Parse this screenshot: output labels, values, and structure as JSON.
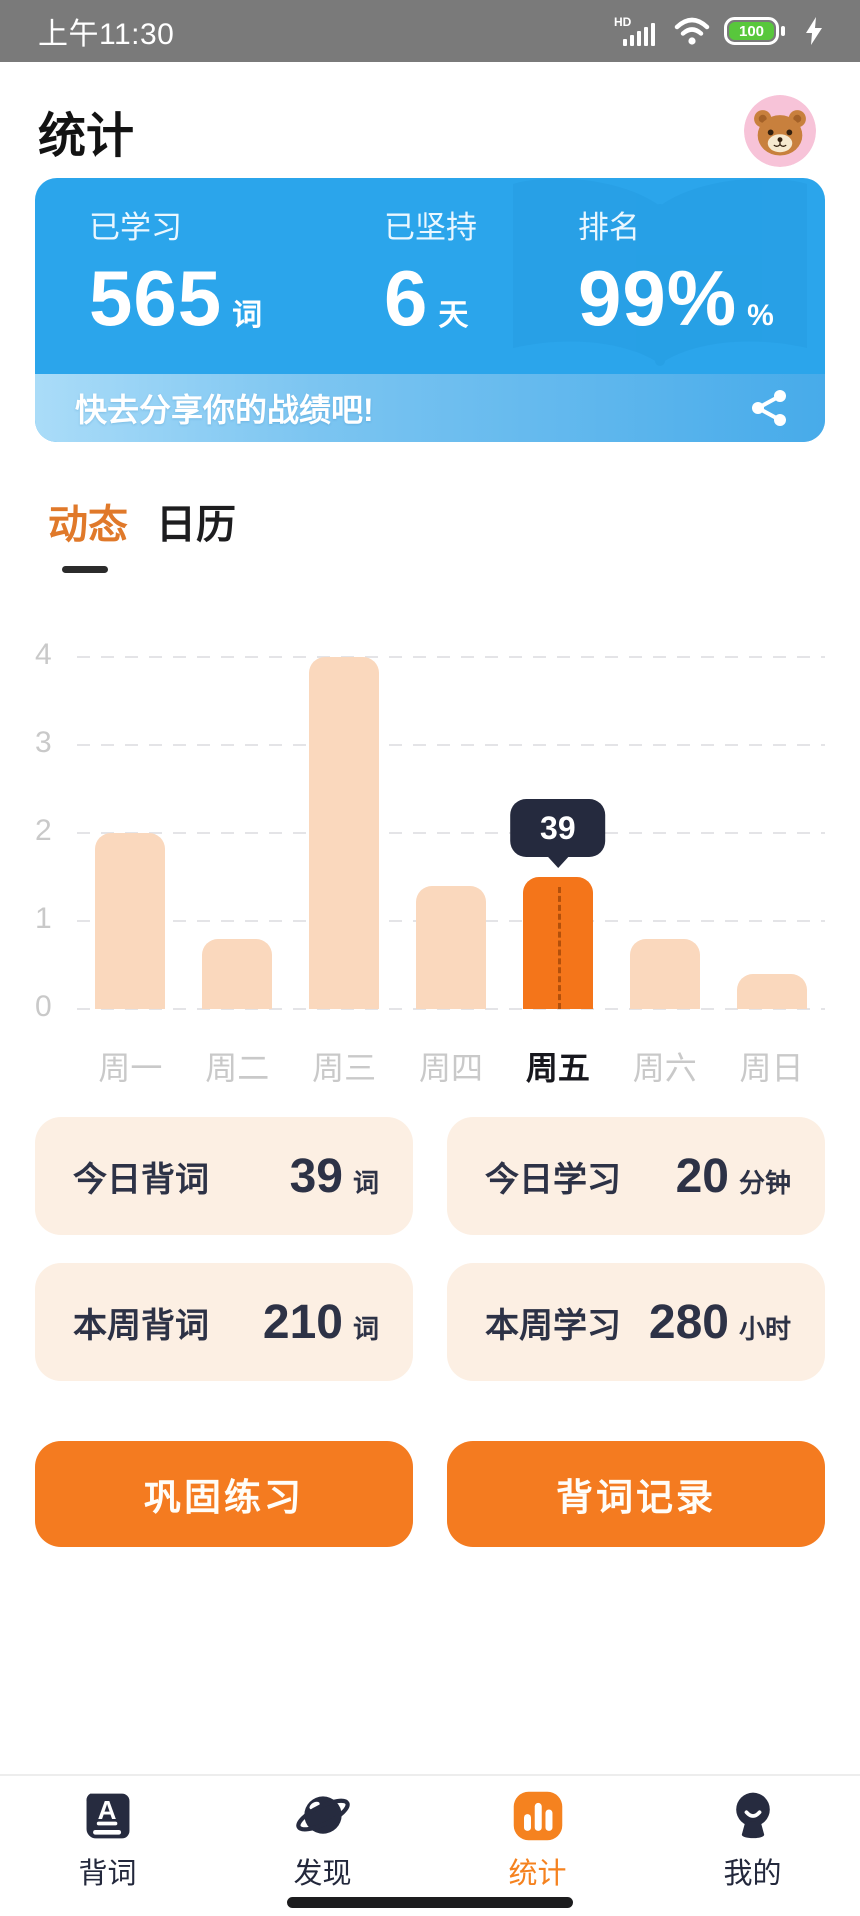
{
  "status_bar": {
    "time": "上午11:30",
    "network_badge": "HD",
    "battery_level": "100"
  },
  "header": {
    "title": "统计"
  },
  "summary_card": {
    "stats": [
      {
        "label": "已学习",
        "value": "565",
        "unit": "词"
      },
      {
        "label": "已坚持",
        "value": "6",
        "unit": "天"
      },
      {
        "label": "排名",
        "value": "99%",
        "unit": "%"
      }
    ],
    "share_text": "快去分享你的战绩吧!",
    "colors": {
      "card_blue": "#2BA5EB",
      "strip_gradient_start": "#AADCF8",
      "strip_gradient_end": "#47ABEA"
    }
  },
  "tabs": [
    {
      "label": "动态",
      "active": true
    },
    {
      "label": "日历",
      "active": false
    }
  ],
  "chart_data": {
    "type": "bar",
    "categories": [
      "周一",
      "周二",
      "周三",
      "周四",
      "周五",
      "周六",
      "周日"
    ],
    "values": [
      2,
      0.8,
      4,
      1.4,
      1.5,
      0.8,
      0.4
    ],
    "highlight_index": 4,
    "tooltip_value": "39",
    "title": "",
    "xlabel": "",
    "ylabel": "",
    "ylim": [
      0,
      4
    ],
    "yticks": [
      0,
      1,
      2,
      3,
      4
    ],
    "grid": "horizontal-dashed",
    "legend": "none",
    "colors": {
      "bar": "#FAD8BD",
      "bar_active": "#F4751A",
      "tooltip_bg": "#252A3E",
      "tick_label": "#C9C9C9",
      "active_tick_label": "#17171D"
    }
  },
  "stat_cards": [
    {
      "label": "今日背词",
      "value": "39",
      "unit": "词"
    },
    {
      "label": "今日学习",
      "value": "20",
      "unit": "分钟"
    },
    {
      "label": "本周背词",
      "value": "210",
      "unit": "词"
    },
    {
      "label": "本周学习",
      "value": "280",
      "unit": "小时"
    }
  ],
  "action_buttons": [
    {
      "label": "巩固练习"
    },
    {
      "label": "背词记录"
    }
  ],
  "bottom_nav": {
    "items": [
      {
        "label": "背词",
        "icon": "book-a-icon",
        "active": false
      },
      {
        "label": "发现",
        "icon": "planet-icon",
        "active": false
      },
      {
        "label": "统计",
        "icon": "bar-chart-icon",
        "active": true
      },
      {
        "label": "我的",
        "icon": "person-icon",
        "active": false
      }
    ]
  },
  "theme": {
    "accent_orange": "#F47B20",
    "navy": "#2D3246",
    "status_bar_gray": "#7A7A7A",
    "battery_green": "#58C73C",
    "mini_card_bg": "#FCEFE3"
  }
}
